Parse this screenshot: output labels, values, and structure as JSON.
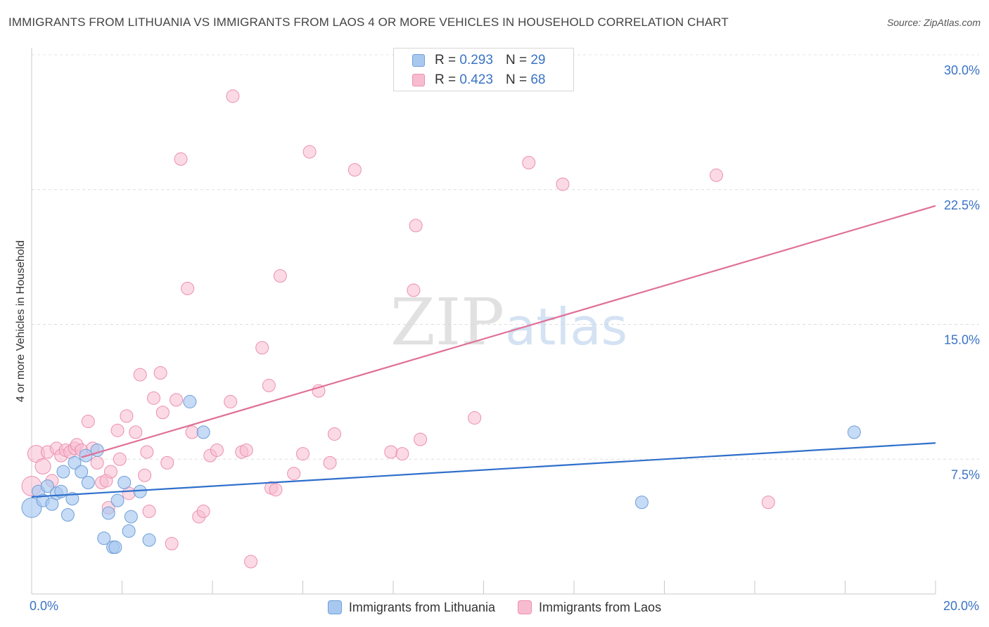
{
  "header": {
    "title": "IMMIGRANTS FROM LITHUANIA VS IMMIGRANTS FROM LAOS 4 OR MORE VEHICLES IN HOUSEHOLD CORRELATION CHART",
    "source": "Source: ZipAtlas.com"
  },
  "watermark": {
    "part1": "ZIP",
    "part2": "atlas"
  },
  "legend_top": {
    "r_label": "R =",
    "n_label": "N =",
    "rows": [
      {
        "r": "0.293",
        "n": "29"
      },
      {
        "r": "0.423",
        "n": "68"
      }
    ]
  },
  "colors": {
    "lithuania_fill": "#a8c8f0",
    "lithuania_stroke": "#6f9fd8",
    "lithuania_line": "#2f6fcb",
    "laos_fill": "#f8bcd0",
    "laos_stroke": "#ec8fb0",
    "laos_line": "#e07098",
    "tick_label": "#3a73c4"
  },
  "chart_data": {
    "type": "scatter",
    "title": "IMMIGRANTS FROM LITHUANIA VS IMMIGRANTS FROM LAOS 4 OR MORE VEHICLES IN HOUSEHOLD CORRELATION CHART",
    "xlabel": "",
    "ylabel": "4 or more Vehicles in Household",
    "xlim": [
      0,
      20
    ],
    "ylim": [
      0,
      30
    ],
    "x_tick_labels": [
      "0.0%",
      "20.0%"
    ],
    "y_ticks": [
      7.5,
      15.0,
      22.5,
      30.0
    ],
    "y_tick_labels": [
      "7.5%",
      "15.0%",
      "22.5%",
      "30.0%"
    ],
    "grid": true,
    "legend_position": "top-center",
    "series": [
      {
        "name": "Immigrants from Lithuania",
        "r": 0.293,
        "n": 29,
        "trend": {
          "x0": 0,
          "y0": 5.4,
          "x1": 20,
          "y1": 8.4
        },
        "points": [
          [
            0.0,
            4.8,
            14
          ],
          [
            0.15,
            5.7,
            9
          ],
          [
            0.25,
            5.2,
            9
          ],
          [
            0.35,
            6.0,
            9
          ],
          [
            0.45,
            5.0,
            9
          ],
          [
            0.55,
            5.6,
            9
          ],
          [
            0.65,
            5.7,
            9
          ],
          [
            0.7,
            6.8,
            9
          ],
          [
            0.8,
            4.4,
            9
          ],
          [
            0.9,
            5.3,
            9
          ],
          [
            0.95,
            7.3,
            9
          ],
          [
            1.1,
            6.8,
            9
          ],
          [
            1.2,
            7.7,
            9
          ],
          [
            1.25,
            6.2,
            9
          ],
          [
            1.45,
            8.0,
            9
          ],
          [
            1.6,
            3.1,
            9
          ],
          [
            1.8,
            2.6,
            9
          ],
          [
            1.85,
            2.6,
            9
          ],
          [
            1.7,
            4.5,
            9
          ],
          [
            1.9,
            5.2,
            9
          ],
          [
            2.05,
            6.2,
            9
          ],
          [
            2.15,
            3.5,
            9
          ],
          [
            2.2,
            4.3,
            9
          ],
          [
            2.4,
            5.7,
            9
          ],
          [
            2.6,
            3.0,
            9
          ],
          [
            3.5,
            10.7,
            9
          ],
          [
            3.8,
            9.0,
            9
          ],
          [
            13.5,
            5.1,
            9
          ],
          [
            18.2,
            9.0,
            9
          ]
        ]
      },
      {
        "name": "Immigrants from Laos",
        "r": 0.423,
        "n": 68,
        "trend": {
          "x0": 1.1,
          "y0": 7.6,
          "x1": 20,
          "y1": 21.6
        },
        "points": [
          [
            0.0,
            6.0,
            14
          ],
          [
            0.1,
            7.8,
            12
          ],
          [
            0.25,
            7.1,
            11
          ],
          [
            0.35,
            7.9,
            9
          ],
          [
            0.45,
            6.3,
            9
          ],
          [
            0.55,
            8.1,
            9
          ],
          [
            0.65,
            7.7,
            9
          ],
          [
            0.75,
            8.0,
            9
          ],
          [
            0.85,
            7.9,
            9
          ],
          [
            0.95,
            8.1,
            9
          ],
          [
            1.0,
            8.3,
            9
          ],
          [
            1.1,
            8.0,
            9
          ],
          [
            1.25,
            9.6,
            9
          ],
          [
            1.35,
            8.1,
            9
          ],
          [
            1.45,
            7.3,
            9
          ],
          [
            1.55,
            6.2,
            9
          ],
          [
            1.65,
            6.3,
            9
          ],
          [
            1.7,
            4.8,
            9
          ],
          [
            1.75,
            6.8,
            9
          ],
          [
            1.9,
            9.1,
            9
          ],
          [
            1.95,
            7.5,
            9
          ],
          [
            2.1,
            9.9,
            9
          ],
          [
            2.15,
            5.6,
            9
          ],
          [
            2.3,
            9.0,
            9
          ],
          [
            2.4,
            12.2,
            9
          ],
          [
            2.5,
            6.6,
            9
          ],
          [
            2.55,
            7.9,
            9
          ],
          [
            2.6,
            4.6,
            9
          ],
          [
            2.7,
            10.9,
            9
          ],
          [
            2.85,
            12.3,
            9
          ],
          [
            2.9,
            10.1,
            9
          ],
          [
            3.0,
            7.3,
            9
          ],
          [
            3.1,
            2.8,
            9
          ],
          [
            3.2,
            10.8,
            9
          ],
          [
            3.3,
            24.2,
            9
          ],
          [
            3.45,
            17.0,
            9
          ],
          [
            3.55,
            9.0,
            9
          ],
          [
            3.7,
            4.3,
            9
          ],
          [
            3.8,
            4.6,
            9
          ],
          [
            3.95,
            7.7,
            9
          ],
          [
            4.1,
            8.0,
            9
          ],
          [
            4.4,
            10.7,
            9
          ],
          [
            4.45,
            27.7,
            9
          ],
          [
            4.65,
            7.9,
            9
          ],
          [
            4.75,
            8.0,
            9
          ],
          [
            4.85,
            1.8,
            9
          ],
          [
            5.1,
            13.7,
            9
          ],
          [
            5.25,
            11.6,
            9
          ],
          [
            5.3,
            5.9,
            9
          ],
          [
            5.4,
            5.8,
            9
          ],
          [
            5.5,
            17.7,
            9
          ],
          [
            5.8,
            6.7,
            9
          ],
          [
            6.0,
            7.8,
            9
          ],
          [
            6.15,
            24.6,
            9
          ],
          [
            6.35,
            11.3,
            9
          ],
          [
            6.6,
            7.3,
            9
          ],
          [
            6.7,
            8.9,
            9
          ],
          [
            7.15,
            23.6,
            9
          ],
          [
            7.95,
            7.9,
            9
          ],
          [
            8.2,
            7.8,
            9
          ],
          [
            8.45,
            16.9,
            9
          ],
          [
            8.5,
            20.5,
            9
          ],
          [
            8.6,
            8.6,
            9
          ],
          [
            9.8,
            9.8,
            9
          ],
          [
            11.0,
            24.0,
            9
          ],
          [
            11.75,
            22.8,
            9
          ],
          [
            15.15,
            23.3,
            9
          ],
          [
            16.3,
            5.1,
            9
          ]
        ]
      }
    ]
  },
  "legend_bottom": {
    "items": [
      {
        "label": "Immigrants from Lithuania"
      },
      {
        "label": "Immigrants from Laos"
      }
    ]
  }
}
